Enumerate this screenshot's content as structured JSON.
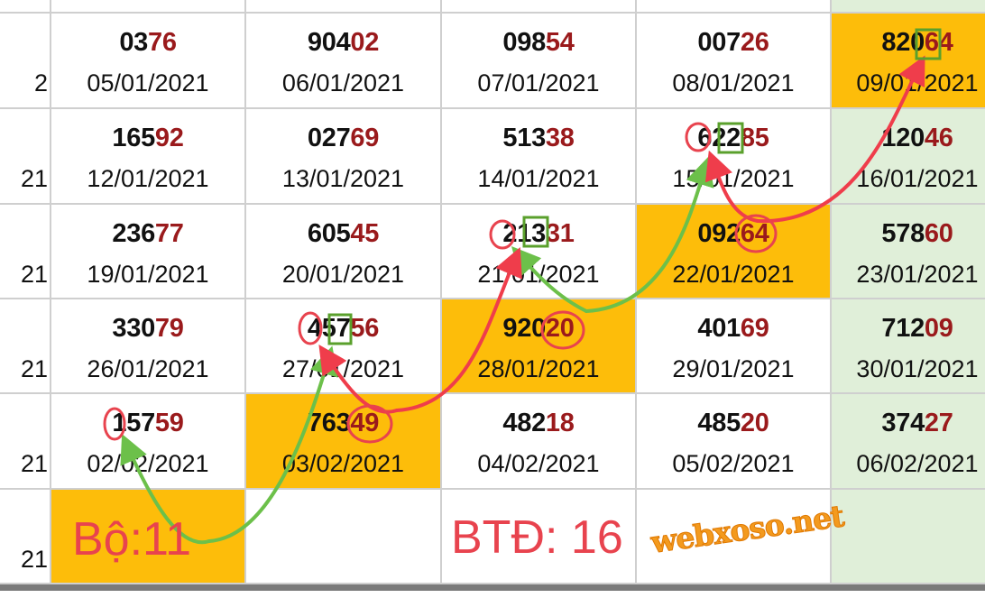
{
  "colors": {
    "orange_highlight": "#fdbd0a",
    "last_column_bg": "#e0efd9",
    "tail_digits": "#9a1a1c",
    "annotation_red": "#e8434e",
    "annotation_green": "#6cc04a",
    "box_green": "#5aa02c"
  },
  "watermark": "webxoso.net",
  "first_column_edges": [
    "2",
    "21",
    "21",
    "21",
    "21",
    "21"
  ],
  "rows": [
    [
      {
        "head": "03",
        "tail": "76",
        "date": "05/01/2021"
      },
      {
        "head": "904",
        "tail": "02",
        "date": "06/01/2021"
      },
      {
        "head": "098",
        "tail": "54",
        "date": "07/01/2021"
      },
      {
        "head": "007",
        "tail": "26",
        "date": "08/01/2021"
      },
      {
        "head": "820",
        "tail": "64",
        "date": "09/01/2021",
        "highlight": true
      }
    ],
    [
      {
        "head": "165",
        "tail": "92",
        "date": "12/01/2021"
      },
      {
        "head": "027",
        "tail": "69",
        "date": "13/01/2021"
      },
      {
        "head": "513",
        "tail": "38",
        "date": "14/01/2021"
      },
      {
        "head": "622",
        "tail": "85",
        "date": "15/01/2021"
      },
      {
        "head": "120",
        "tail": "46",
        "date": "16/01/2021"
      }
    ],
    [
      {
        "head": "236",
        "tail": "77",
        "date": "19/01/2021"
      },
      {
        "head": "605",
        "tail": "45",
        "date": "20/01/2021"
      },
      {
        "head": "213",
        "tail": "31",
        "date": "21/01/2021"
      },
      {
        "head": "092",
        "tail": "64",
        "date": "22/01/2021",
        "highlight": true
      },
      {
        "head": "578",
        "tail": "60",
        "date": "23/01/2021"
      }
    ],
    [
      {
        "head": "330",
        "tail": "79",
        "date": "26/01/2021"
      },
      {
        "head": "457",
        "tail": "56",
        "date": "27/01/2021"
      },
      {
        "head": "920",
        "tail": "20",
        "date": "28/01/2021",
        "highlight": true
      },
      {
        "head": "401",
        "tail": "69",
        "date": "29/01/2021"
      },
      {
        "head": "712",
        "tail": "09",
        "date": "30/01/2021"
      }
    ],
    [
      {
        "head": "157",
        "tail": "59",
        "date": "02/02/2021"
      },
      {
        "head": "763",
        "tail": "49",
        "date": "03/02/2021",
        "highlight": true
      },
      {
        "head": "482",
        "tail": "18",
        "date": "04/02/2021"
      },
      {
        "head": "485",
        "tail": "20",
        "date": "05/02/2021"
      },
      {
        "head": "374",
        "tail": "27",
        "date": "06/02/2021"
      }
    ],
    [
      {
        "head": "",
        "tail": "",
        "date": "",
        "highlight": true
      },
      {
        "head": "",
        "tail": "",
        "date": ""
      },
      {
        "head": "",
        "tail": "",
        "date": ""
      },
      {
        "head": "",
        "tail": "",
        "date": ""
      },
      {
        "head": "",
        "tail": "",
        "date": ""
      }
    ]
  ],
  "annotations": {
    "bo_label": "Bộ:11",
    "btd_label": "BTĐ: 16"
  }
}
